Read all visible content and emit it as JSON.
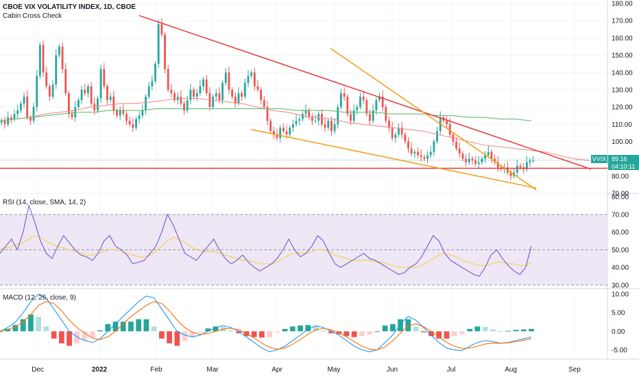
{
  "header": {
    "main_title": "CBOE VIX VOLATILITY INDEX, 1D, CBOE",
    "indicator_name": "Cabin Cross Check"
  },
  "rsi_pane": {
    "label": "RSI (14, close, SMA, 14, 2)"
  },
  "macd_pane": {
    "label": "MACD (12, 26, close, 9)"
  },
  "price_tag": {
    "symbol": "VVIX",
    "price": "89.16",
    "countdown": "04:10:11"
  },
  "colors": {
    "up": "#26a69a",
    "down": "#ef5350",
    "resistance": "#e5393a",
    "support": "#f39c12",
    "ma_red": "#f28b8b",
    "ma_green": "#66bb6a",
    "rsi_line": "#7e57c2",
    "rsi_signal": "#f5d142",
    "rsi_band": "#ede7f6",
    "macd_line": "#2196f3",
    "signal_line": "#ff6d00",
    "hist_up_strong": "#26a69a",
    "hist_up_weak": "#b2dfdb",
    "hist_down_strong": "#ef5350",
    "hist_down_weak": "#ffcdd2"
  },
  "chart_data": [
    {
      "type": "candlestick",
      "title": "CBOE VIX VOLATILITY INDEX, 1D, CBOE",
      "x_ticks": [
        "Dec",
        "2022",
        "Feb",
        "Mar",
        "Apr",
        "May",
        "Jun",
        "Jul",
        "Aug",
        "Sep"
      ],
      "y_ticks": [
        180,
        170,
        160,
        150,
        140,
        130,
        120,
        110,
        100,
        90,
        80,
        70
      ],
      "ylim": [
        70,
        182
      ],
      "close": [
        112,
        110,
        114,
        113,
        116,
        118,
        122,
        126,
        114,
        112,
        120,
        138,
        156,
        140,
        132,
        126,
        133,
        150,
        155,
        142,
        128,
        116,
        114,
        120,
        124,
        130,
        128,
        132,
        122,
        118,
        125,
        142,
        132,
        124,
        126,
        118,
        115,
        118,
        116,
        112,
        110,
        108,
        113,
        115,
        118,
        126,
        132,
        135,
        145,
        168,
        162,
        142,
        130,
        128,
        124,
        126,
        122,
        118,
        124,
        130,
        126,
        128,
        132,
        136,
        128,
        120,
        126,
        128,
        124,
        134,
        140,
        130,
        126,
        122,
        128,
        126,
        134,
        138,
        140,
        132,
        130,
        124,
        120,
        112,
        106,
        104,
        102,
        108,
        106,
        104,
        108,
        110,
        112,
        113,
        116,
        118,
        114,
        112,
        112,
        116,
        110,
        108,
        112,
        106,
        110,
        120,
        128,
        126,
        116,
        112,
        118,
        120,
        126,
        124,
        116,
        112,
        118,
        124,
        126,
        120,
        112,
        108,
        102,
        104,
        108,
        104,
        100,
        96,
        93,
        94,
        92,
        91,
        90,
        92,
        94,
        100,
        106,
        114,
        112,
        110,
        104,
        100,
        96,
        93,
        90,
        88,
        90,
        89,
        87,
        88,
        90,
        92,
        94,
        90,
        88,
        85,
        84,
        85,
        82,
        80,
        82,
        86,
        85,
        84,
        88,
        89,
        89.16
      ],
      "ma_red": [
        112,
        113,
        114,
        116,
        117,
        118,
        120,
        121,
        122,
        122,
        123,
        124,
        125,
        125,
        124,
        123,
        122,
        120,
        118,
        117,
        115,
        114,
        113,
        111,
        110,
        109,
        108,
        107,
        106,
        104,
        102,
        100,
        98,
        97,
        96,
        95,
        94,
        92,
        90,
        89
      ],
      "ma_green": [
        112,
        113,
        114,
        115,
        116,
        117,
        117,
        118,
        118,
        118,
        119,
        119,
        119,
        119,
        119,
        119,
        119,
        119,
        119,
        118,
        118,
        118,
        117,
        117,
        117,
        116,
        116,
        116,
        115,
        115,
        114,
        114,
        113,
        113,
        112
      ],
      "resistance_line": {
        "from": [
          "Jan peak",
          173
        ],
        "to": [
          "Sep",
          84
        ]
      },
      "support_line": {
        "from": [
          "Mar",
          107
        ],
        "to": [
          "Aug",
          73
        ]
      },
      "fan_line": {
        "from": [
          "Apr",
          154
        ],
        "to": [
          "Aug",
          72
        ]
      },
      "horizontal_line": 84.5,
      "last_price": 89.16
    },
    {
      "type": "line",
      "title": "RSI (14, close, SMA, 14, 2)",
      "y_ticks": [
        80,
        70,
        60,
        50,
        40,
        30
      ],
      "ylim": [
        28,
        82
      ],
      "bands": [
        70,
        50,
        30
      ],
      "series": [
        {
          "name": "RSI",
          "values": [
            48,
            52,
            56,
            50,
            60,
            75,
            66,
            55,
            48,
            45,
            52,
            58,
            54,
            50,
            47,
            46,
            44,
            48,
            55,
            58,
            52,
            50,
            47,
            42,
            43,
            44,
            48,
            52,
            60,
            70,
            64,
            56,
            48,
            46,
            44,
            48,
            52,
            56,
            50,
            45,
            42,
            44,
            47,
            43,
            40,
            38,
            40,
            42,
            45,
            50,
            56,
            50,
            46,
            48,
            52,
            58,
            55,
            48,
            42,
            40,
            42,
            44,
            46,
            48,
            45,
            44,
            42,
            40,
            38,
            36,
            37,
            40,
            42,
            46,
            52,
            58,
            55,
            48,
            44,
            42,
            40,
            38,
            36,
            35,
            40,
            47,
            50,
            45,
            41,
            38,
            36,
            40,
            52
          ]
        },
        {
          "name": "Signal",
          "values": [
            50,
            51,
            52,
            53,
            54,
            56,
            58,
            57,
            55,
            53,
            52,
            51,
            50,
            49,
            48,
            47,
            47,
            48,
            49,
            50,
            50,
            49,
            48,
            47,
            46,
            46,
            47,
            49,
            52,
            55,
            57,
            56,
            54,
            52,
            50,
            49,
            49,
            49,
            48,
            47,
            46,
            45,
            44,
            44,
            43,
            42,
            42,
            42,
            43,
            45,
            47,
            48,
            48,
            48,
            49,
            50,
            50,
            49,
            47,
            46,
            45,
            44,
            44,
            44,
            44,
            43,
            43,
            42,
            41,
            40,
            40,
            40,
            40,
            41,
            43,
            45,
            47,
            48,
            47,
            46,
            44,
            43,
            42,
            41,
            41,
            42,
            43,
            43,
            42,
            42,
            41,
            41,
            43
          ]
        }
      ]
    },
    {
      "type": "line",
      "title": "MACD (12, 26, close, 9)",
      "y_ticks": [
        10.0,
        5.0,
        0.0,
        -5.0
      ],
      "ylim": [
        -7.5,
        11.5
      ],
      "series": [
        {
          "name": "MACD",
          "values": [
            0,
            1,
            2.5,
            5,
            8,
            10,
            9,
            6,
            3,
            0,
            -1.5,
            -2.5,
            -3,
            -2,
            0,
            2,
            4,
            6,
            8,
            9.5,
            9,
            6,
            3,
            0,
            -1,
            -1.5,
            -1,
            0,
            1,
            1.5,
            1,
            0,
            -1.5,
            -3,
            -4.5,
            -5.5,
            -5,
            -4,
            -2.5,
            -1,
            0.5,
            1.5,
            1,
            0,
            -1,
            -2.5,
            -4,
            -5,
            -5.5,
            -5,
            -3,
            -1,
            2,
            4,
            3,
            1,
            -1,
            -3,
            -4.5,
            -5,
            -5.2,
            -4,
            -3,
            -2.5,
            -2.8,
            -3.2,
            -3,
            -2.5,
            -2,
            -1.5
          ]
        },
        {
          "name": "Signal",
          "values": [
            0,
            0.5,
            1.2,
            2.5,
            4.5,
            7,
            8,
            7.5,
            5.5,
            3,
            1,
            -0.5,
            -1.8,
            -2.2,
            -1.5,
            0,
            2,
            4,
            5.5,
            7,
            8,
            7.5,
            5.5,
            3,
            1,
            -0.3,
            -0.8,
            -0.6,
            0,
            0.6,
            0.8,
            0.4,
            -0.5,
            -1.8,
            -3.2,
            -4.3,
            -4.8,
            -4.5,
            -3.5,
            -2.2,
            -0.8,
            0.4,
            0.8,
            0.4,
            -0.4,
            -1.5,
            -2.8,
            -4,
            -4.8,
            -5,
            -4.2,
            -2.5,
            -0.5,
            1.5,
            2,
            1.2,
            0,
            -1.5,
            -3,
            -4,
            -4.6,
            -4.5,
            -4,
            -3.4,
            -3.2,
            -3.2,
            -3.1,
            -2.8,
            -2.4,
            -2
          ]
        }
      ]
    }
  ]
}
